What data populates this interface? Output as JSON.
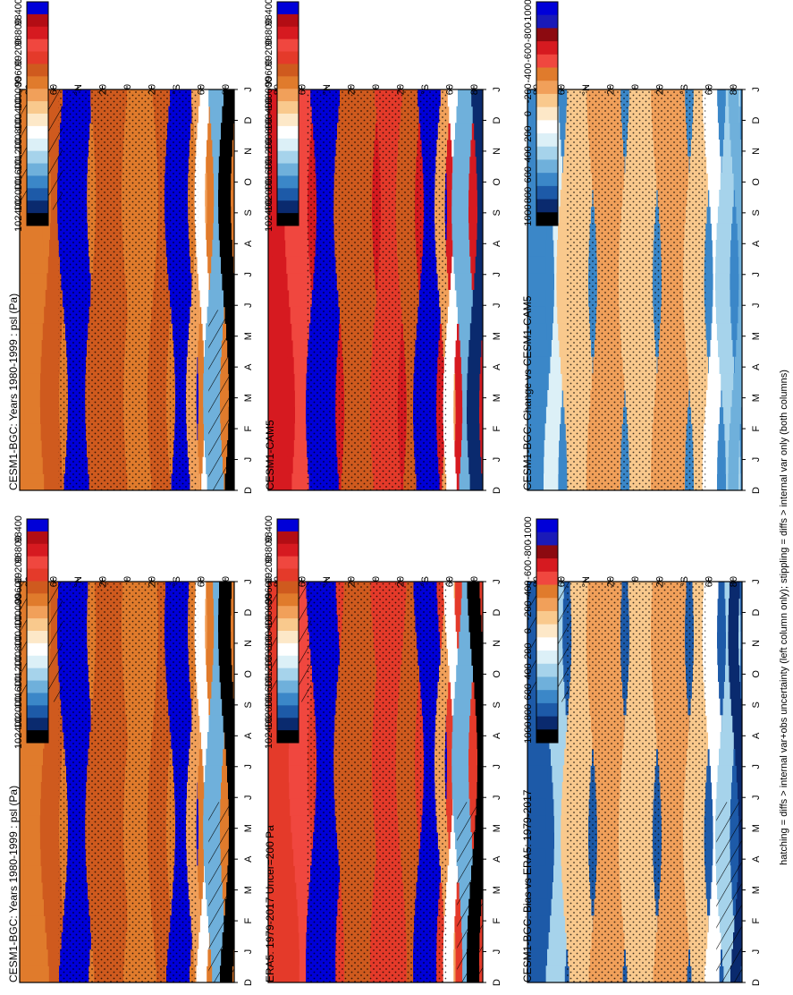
{
  "figure_note": "hatching = diffs > internal var+obs uncertainty (left column only); stippling = diffs > internal var only (both columns)",
  "colors": {
    "psl": [
      "#000000",
      "#0a2a6e",
      "#1d5aa8",
      "#3b87c8",
      "#6fb0db",
      "#a6d3eb",
      "#dcf0f7",
      "#ffffff",
      "#fde8c8",
      "#f9c98d",
      "#f1a05a",
      "#e07b2c",
      "#cf5a1e",
      "#e43a2a",
      "#f0473f",
      "#d61a20",
      "#b30d14",
      "#0000d8"
    ],
    "diff": [
      "#000000",
      "#0a2a6e",
      "#1d5aa8",
      "#3b87c8",
      "#6fb0db",
      "#a6d3eb",
      "#dcf0f7",
      "#ffffff",
      "#fde8c8",
      "#f9c98d",
      "#f1a05a",
      "#e07b2c",
      "#f0473f",
      "#d61a20",
      "#8c0a10",
      "#1a1ab8",
      "#0000d8"
    ]
  },
  "colorbars": {
    "psl_labels": [
      "102400",
      "102000",
      "101600",
      "101200",
      "100800",
      "100400",
      "100000",
      "99600",
      "99200",
      "98800",
      "98400"
    ],
    "diff_labels": [
      "1000",
      "800",
      "600",
      "400",
      "200",
      "0",
      "-200",
      "-400",
      "-600",
      "-800",
      "-1000"
    ]
  },
  "axes": {
    "month_labels": [
      "D",
      "J",
      "F",
      "M",
      "A",
      "M",
      "J",
      "J",
      "A",
      "S",
      "O",
      "N",
      "D",
      "J"
    ],
    "lat_labels": [
      "80",
      "60",
      "°N",
      "20",
      "0",
      "20",
      "°S",
      "60",
      "80"
    ]
  },
  "chart_data": [
    {
      "type": "heatmap",
      "title": "CESM1-BGC: Years 1980-1999 : psl (Pa)",
      "x": "month",
      "y": "latitude",
      "zlim": [
        98400,
        102400
      ]
    },
    {
      "type": "heatmap",
      "title": "CESM1-BGC: Years 1980-1999 : psl (Pa)",
      "x": "month",
      "y": "latitude",
      "zlim": [
        98400,
        102400
      ]
    },
    {
      "type": "heatmap",
      "title": "ERA5: 1979-2017 Uncer=200 Pa",
      "x": "month",
      "y": "latitude",
      "zlim": [
        98400,
        102400
      ]
    },
    {
      "type": "heatmap",
      "title": "CESM1-CAM5",
      "x": "month",
      "y": "latitude",
      "zlim": [
        98400,
        102400
      ]
    },
    {
      "type": "heatmap",
      "title": "CESM1-BGC: Bias vs ERA5: 1979-2017",
      "x": "month",
      "y": "latitude",
      "zlim": [
        -1000,
        1000
      ]
    },
    {
      "type": "heatmap",
      "title": "CESM1-BGC: Change vs CESM1-CAM5",
      "x": "month",
      "y": "latitude",
      "zlim": [
        -1000,
        1000
      ]
    }
  ]
}
